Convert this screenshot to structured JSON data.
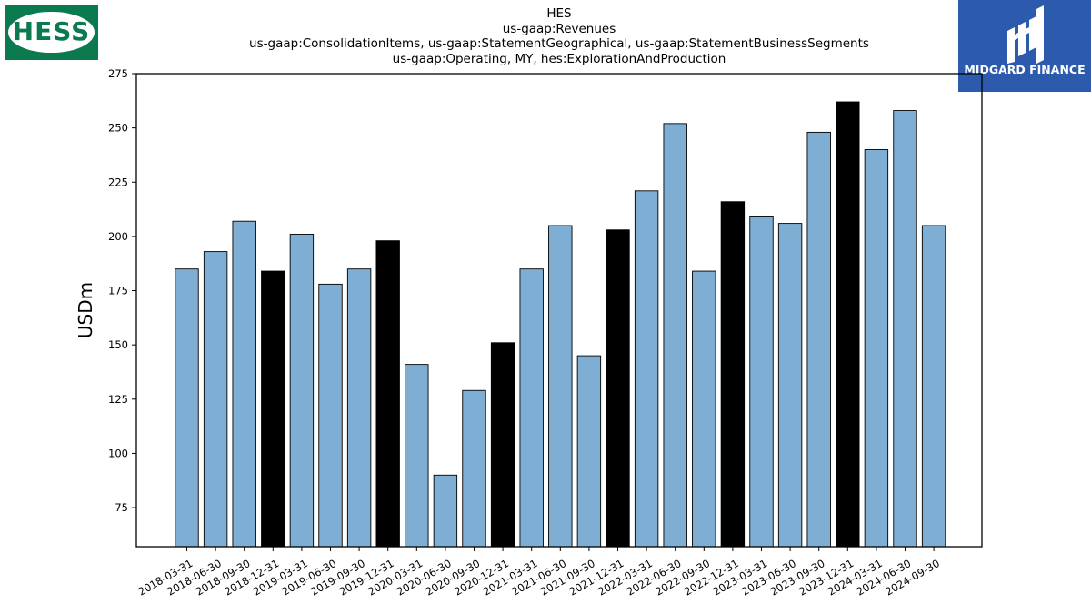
{
  "header": {
    "title_lines": [
      "HES",
      "us-gaap:Revenues",
      "us-gaap:ConsolidationItems, us-gaap:StatementGeographical, us-gaap:StatementBusinessSegments",
      "us-gaap:Operating, MY, hes:ExplorationAndProduction"
    ]
  },
  "logos": {
    "left_text": "HESS",
    "right_text": "MIDGARD FINANCE"
  },
  "colors": {
    "bar_default": "#7eaed3",
    "bar_highlight": "#000000",
    "hess_green": "#0b7a4f",
    "midgard_blue": "#2c5aad"
  },
  "chart_data": {
    "type": "bar",
    "ylabel": "USDm",
    "xlabel": "",
    "ylim": [
      57,
      275
    ],
    "yticks": [
      75,
      100,
      125,
      150,
      175,
      200,
      225,
      250,
      275
    ],
    "grid": false,
    "categories": [
      "2018-03-31",
      "2018-06-30",
      "2018-09-30",
      "2018-12-31",
      "2019-03-31",
      "2019-06-30",
      "2019-09-30",
      "2019-12-31",
      "2020-03-31",
      "2020-06-30",
      "2020-09-30",
      "2020-12-31",
      "2021-03-31",
      "2021-06-30",
      "2021-09-30",
      "2021-12-31",
      "2022-03-31",
      "2022-06-30",
      "2022-09-30",
      "2022-12-31",
      "2023-03-31",
      "2023-06-30",
      "2023-09-30",
      "2023-12-31",
      "2024-03-31",
      "2024-06-30",
      "2024-09-30"
    ],
    "values": [
      185,
      193,
      207,
      184,
      201,
      178,
      185,
      198,
      141,
      90,
      129,
      151,
      185,
      205,
      145,
      203,
      221,
      252,
      184,
      216,
      209,
      206,
      248,
      262,
      240,
      258,
      205
    ],
    "highlight_categories": [
      "2018-12-31",
      "2019-12-31",
      "2020-12-31",
      "2021-12-31",
      "2022-12-31",
      "2023-12-31"
    ]
  }
}
